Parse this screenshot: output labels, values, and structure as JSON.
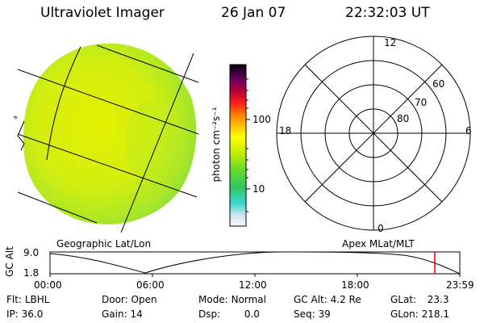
{
  "header": {
    "instrument": "Ultraviolet Imager",
    "date": "26 Jan 07",
    "time": "22:32:03 UT"
  },
  "colorbar": {
    "label": "photon cm⁻²s⁻¹",
    "ticks": [
      "100",
      "10"
    ]
  },
  "polar_plot": {
    "mlt_labels": {
      "top": "12",
      "bottom": "0",
      "left": "18",
      "right": "6"
    },
    "lat_labels": [
      "60",
      "70",
      "80"
    ]
  },
  "panel_labels": {
    "left": "Geographic Lat/Lon",
    "right": "Apex MLat/MLT"
  },
  "altitude_plot": {
    "ylabel": "GC Alt",
    "yticks": [
      "9.0",
      "1.8"
    ],
    "xticks": [
      "00:00",
      "06:00",
      "12:00",
      "18:00",
      "23:59"
    ]
  },
  "info": {
    "row1": [
      {
        "key": "Flt:",
        "value": "LBHL"
      },
      {
        "key": "Door:",
        "value": "Open"
      },
      {
        "key": "Mode:",
        "value": "Normal"
      },
      {
        "key": "GC Alt:",
        "value": "4.2 Re"
      },
      {
        "key": "GLat:",
        "value": "23.3"
      }
    ],
    "row2": [
      {
        "key": "IP:",
        "value": "36.0"
      },
      {
        "key": "Gain:",
        "value": "14"
      },
      {
        "key": "Dsp:",
        "value": "0.0"
      },
      {
        "key": "Seq:",
        "value": "39"
      },
      {
        "key": "GLon:",
        "value": "218.1"
      }
    ]
  },
  "colors": {
    "marker": "#e00000"
  }
}
